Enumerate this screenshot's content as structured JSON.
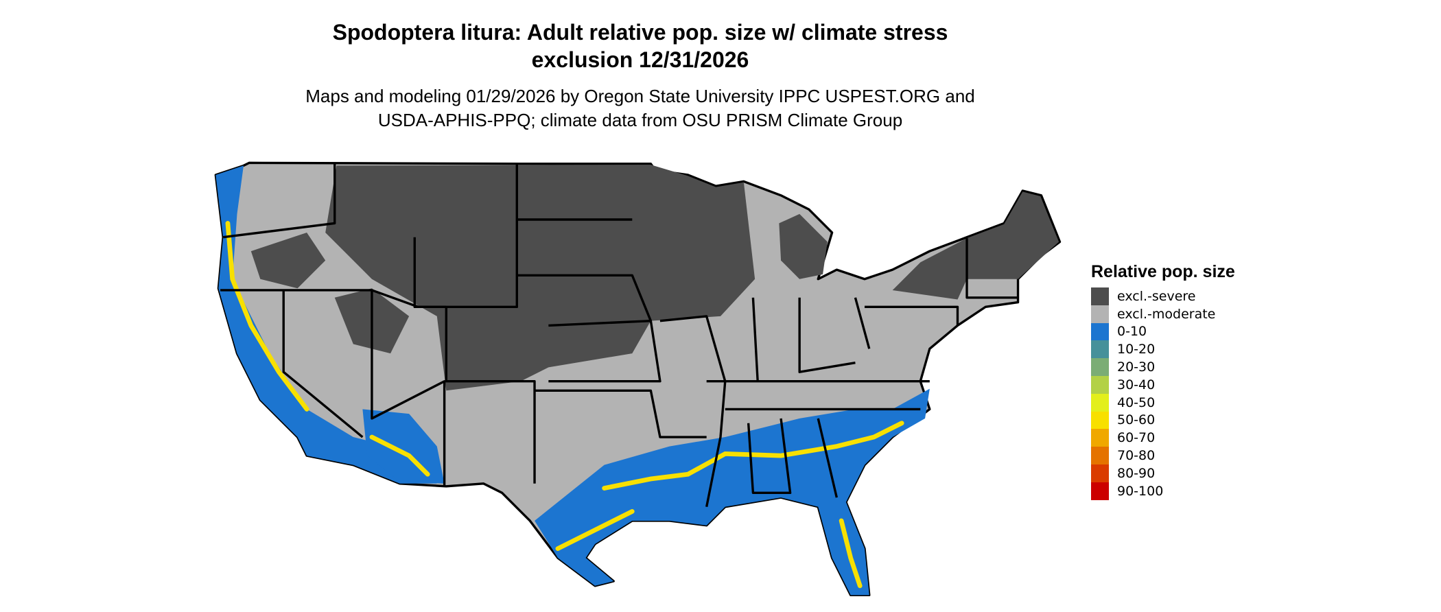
{
  "title": {
    "line1": "Spodoptera litura: Adult relative pop. size w/ climate stress",
    "line2": "exclusion 12/31/2026"
  },
  "subtitle": {
    "line1": "Maps and modeling 01/29/2026 by Oregon State University IPPC USPEST.ORG and",
    "line2": "USDA-APHIS-PPQ; climate data from OSU PRISM Climate Group"
  },
  "legend": {
    "title": "Relative pop. size",
    "items": [
      {
        "label": "excl.-severe",
        "color": "#4d4d4d"
      },
      {
        "label": "excl.-moderate",
        "color": "#b3b3b3"
      },
      {
        "label": "0-10",
        "color": "#1c75d0"
      },
      {
        "label": "10-20",
        "color": "#46919a"
      },
      {
        "label": "20-30",
        "color": "#7bad75"
      },
      {
        "label": "30-40",
        "color": "#b3d146"
      },
      {
        "label": "40-50",
        "color": "#e3ef1b"
      },
      {
        "label": "50-60",
        "color": "#f8e000"
      },
      {
        "label": "60-70",
        "color": "#f0a800"
      },
      {
        "label": "70-80",
        "color": "#e57300"
      },
      {
        "label": "80-90",
        "color": "#da3b00"
      },
      {
        "label": "90-100",
        "color": "#cc0000"
      }
    ]
  }
}
